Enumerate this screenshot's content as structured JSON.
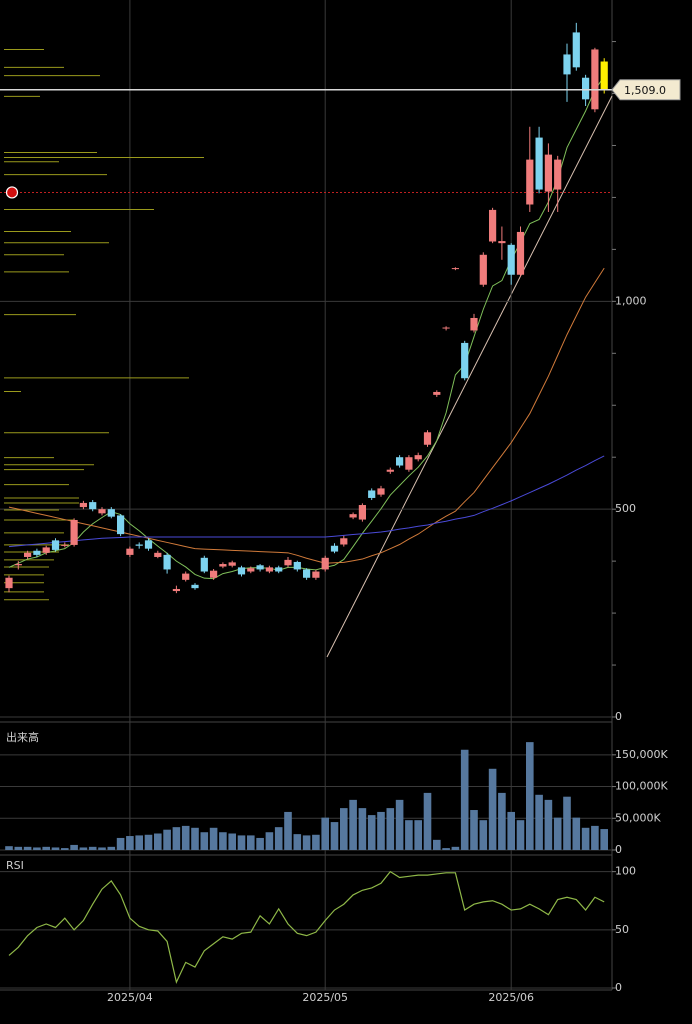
{
  "chart_data": {
    "type": "candlestick",
    "categories": [
      null,
      null,
      null,
      null,
      null,
      null,
      null,
      null,
      null,
      null,
      null,
      null,
      null,
      "2025/04",
      null,
      null,
      null,
      null,
      null,
      null,
      null,
      null,
      null,
      null,
      null,
      null,
      null,
      null,
      null,
      null,
      null,
      null,
      null,
      null,
      "2025/05",
      null,
      null,
      null,
      null,
      null,
      null,
      null,
      null,
      null,
      null,
      null,
      null,
      null,
      null,
      null,
      null,
      null,
      null,
      null,
      "2025/06",
      null,
      null,
      null,
      null,
      null,
      null,
      null,
      null,
      null,
      null
    ],
    "open": [
      310,
      365,
      385,
      400,
      395,
      425,
      412,
      414,
      505,
      517,
      490,
      500,
      485,
      390,
      415,
      425,
      385,
      390,
      303,
      330,
      318,
      383,
      335,
      362,
      364,
      360,
      350,
      365,
      350,
      360,
      365,
      373,
      355,
      335,
      355,
      412,
      415,
      480,
      475,
      545,
      535,
      590,
      625,
      595,
      620,
      655,
      775,
      935,
      1078,
      900,
      930,
      1040,
      1144,
      1140,
      1136,
      1064,
      1233,
      1394,
      1264,
      1269,
      1594,
      1647,
      1538,
      1462,
      1577
    ],
    "high": [
      340,
      375,
      400,
      405,
      412,
      430,
      420,
      478,
      520,
      522,
      505,
      505,
      488,
      410,
      420,
      430,
      400,
      395,
      316,
      350,
      322,
      388,
      356,
      372,
      376,
      364,
      362,
      368,
      364,
      364,
      385,
      376,
      358,
      354,
      388,
      418,
      436,
      492,
      514,
      550,
      556,
      600,
      630,
      630,
      636,
      690,
      786,
      940,
      1082,
      905,
      970,
      1118,
      1225,
      1180,
      1140,
      1180,
      1420,
      1420,
      1380,
      1350,
      1620,
      1670,
      1545,
      1610,
      1585
    ],
    "low": [
      300,
      355,
      380,
      385,
      390,
      398,
      408,
      410,
      500,
      495,
      485,
      478,
      435,
      385,
      405,
      400,
      382,
      345,
      298,
      326,
      306,
      346,
      330,
      358,
      360,
      338,
      346,
      350,
      346,
      346,
      360,
      350,
      330,
      330,
      350,
      394,
      410,
      476,
      470,
      522,
      530,
      585,
      600,
      590,
      615,
      650,
      770,
      930,
      1075,
      810,
      925,
      1035,
      1140,
      1100,
      1040,
      1060,
      1215,
      1260,
      1215,
      1215,
      1480,
      1555,
      1470,
      1455,
      1500
    ],
    "close": [
      335,
      368,
      395,
      390,
      408,
      402,
      414,
      474,
      515,
      500,
      500,
      482,
      440,
      405,
      412,
      405,
      395,
      355,
      308,
      345,
      310,
      350,
      352,
      368,
      372,
      343,
      358,
      355,
      360,
      350,
      378,
      355,
      335,
      350,
      383,
      398,
      430,
      488,
      510,
      527,
      550,
      595,
      605,
      625,
      630,
      685,
      782,
      937,
      1080,
      815,
      960,
      1112,
      1220,
      1145,
      1064,
      1167,
      1341,
      1269,
      1353,
      1341,
      1546,
      1563,
      1486,
      1606,
      1509
    ],
    "up_color": "#f07c7c",
    "down_color": "#7dd3ef",
    "last_color": "#ffee00",
    "ylim": [
      0,
      1725
    ],
    "yticks": [
      0,
      500,
      {
        "value": 1000,
        "label": "1,000"
      }
    ],
    "yminor_ticks": [
      125,
      250,
      375,
      625,
      750,
      875,
      1125,
      1250,
      1375,
      1500,
      1625
    ],
    "last_price": {
      "value": 1509,
      "label": "1,509.0"
    },
    "alert_price": 1262,
    "ma_series": [
      {
        "color": "#7fbf5a",
        "values": [
          360,
          370,
          380,
          385,
          395,
          400,
          405,
          420,
          445,
          465,
          480,
          494,
          487,
          465,
          448,
          429,
          411,
          394,
          375,
          361,
          343,
          334,
          333,
          345,
          350,
          357,
          359,
          359,
          358,
          353,
          360,
          360,
          356,
          354,
          360,
          365,
          379,
          410,
          442,
          471,
          501,
          534,
          557,
          580,
          601,
          628,
          665,
          732,
          823,
          848,
          915,
          981,
          1037,
          1050,
          1100,
          1142,
          1187,
          1197,
          1239,
          1294,
          1370,
          1414,
          1458,
          1508,
          1542
        ]
      },
      {
        "color": "#d07a3a",
        "values": [
          505,
          500,
          495,
          490,
          485,
          480,
          475,
          470,
          465,
          460,
          455,
          450,
          445,
          440,
          435,
          430,
          425,
          420,
          415,
          410,
          405,
          404,
          403,
          402,
          401,
          400,
          399,
          398,
          397,
          396,
          395,
          389,
          382,
          376,
          370,
          371,
          372,
          376,
          380,
          388,
          395,
          405,
          415,
          428,
          440,
          455,
          470,
          483,
          495,
          518,
          540,
          570,
          600,
          630,
          660,
          695,
          730,
          775,
          820,
          870,
          920,
          965,
          1010,
          1045,
          1080
        ]
      },
      {
        "color": "#4a4ad8",
        "values": [
          410,
          412,
          414,
          416,
          418,
          420,
          422,
          424,
          426,
          428,
          430,
          431,
          432,
          433,
          433,
          433,
          433,
          433,
          433,
          433,
          433,
          433,
          433,
          433,
          433,
          433,
          433,
          433,
          433,
          433,
          433,
          433,
          433,
          433,
          433,
          435,
          437,
          439,
          441,
          443,
          445,
          448,
          452,
          455,
          459,
          462,
          467,
          471,
          476,
          480,
          485,
          494,
          502,
          511,
          520,
          530,
          540,
          550,
          560,
          571,
          582,
          594,
          605,
          617,
          628
        ]
      }
    ],
    "volume_by_price": {
      "color": "#9a9a1c",
      "prices": [
        1606,
        1563,
        1543,
        1493,
        1358,
        1346,
        1336,
        1305,
        1221,
        1168,
        1141,
        1112,
        1071,
        968,
        816,
        783,
        684,
        624,
        607,
        595,
        559,
        527,
        515,
        498,
        474,
        443,
        414,
        397,
        378,
        361,
        342,
        323,
        301,
        282
      ],
      "values": [
        40,
        60,
        96,
        36,
        93,
        200,
        55,
        103,
        150,
        67,
        105,
        60,
        65,
        72,
        185,
        17,
        105,
        50,
        90,
        80,
        65,
        75,
        75,
        55,
        70,
        60,
        65,
        55,
        50,
        45,
        40,
        40,
        40,
        45
      ]
    },
    "volume": {
      "title": "出来高",
      "color": "#56789e",
      "values": [
        6000,
        5000,
        5000,
        4000,
        5000,
        4000,
        3000,
        8000,
        4000,
        5000,
        4000,
        5000,
        19000,
        22000,
        23000,
        24000,
        26000,
        32000,
        36000,
        38000,
        35000,
        28000,
        35000,
        28000,
        26000,
        23000,
        23000,
        19000,
        28000,
        36000,
        60000,
        25000,
        23000,
        24000,
        51000,
        44000,
        66000,
        79000,
        66000,
        55000,
        60000,
        66000,
        79000,
        47000,
        47000,
        90000,
        16000,
        3000,
        5000,
        158000,
        63000,
        47000,
        128000,
        90000,
        60000,
        47000,
        170000,
        87000,
        79000,
        51000,
        84000,
        51000,
        35000,
        38000,
        33000
      ],
      "ylim": [
        0,
        197000
      ],
      "yticks": [
        0,
        {
          "value": 50000,
          "label": "50,000K"
        },
        {
          "value": 100000,
          "label": "100,000K"
        },
        {
          "value": 150000,
          "label": "150,000K"
        }
      ]
    },
    "rsi": {
      "title": "RSI",
      "color": "#8fb848",
      "values": [
        28,
        35,
        45,
        52,
        55,
        52,
        60,
        50,
        58,
        72,
        85,
        92,
        80,
        60,
        53,
        50,
        49,
        40,
        5,
        22,
        18,
        32,
        38,
        44,
        42,
        47,
        48,
        62,
        55,
        68,
        55,
        47,
        45,
        48,
        58,
        67,
        72,
        80,
        84,
        86,
        90,
        100,
        95,
        96,
        97,
        97,
        98,
        99,
        99,
        67,
        72,
        74,
        75,
        72,
        67,
        68,
        72,
        68,
        63,
        76,
        78,
        76,
        67,
        78,
        74
      ],
      "ylim": [
        0,
        110
      ],
      "yticks": [
        0,
        50,
        100
      ]
    }
  }
}
